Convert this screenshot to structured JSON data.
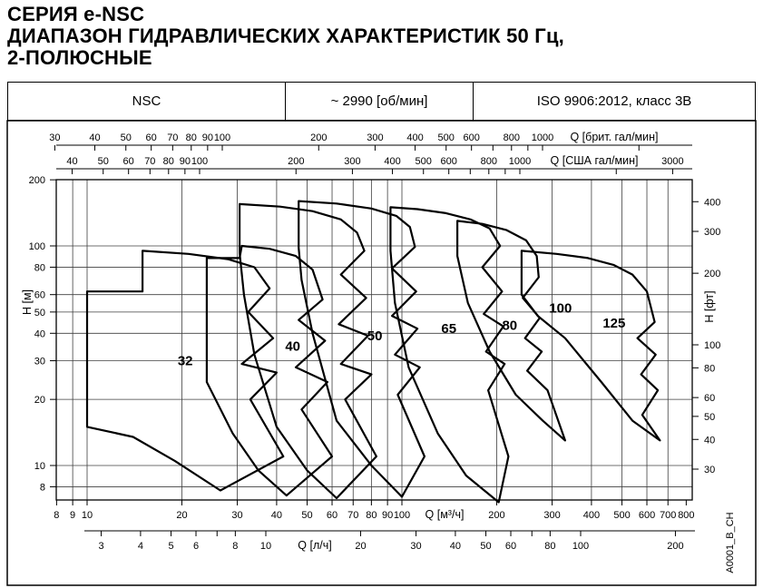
{
  "title_lines": [
    "СЕРИЯ e-NSC",
    "ДИАПАЗОН ГИДРАВЛИЧЕСКИХ ХАРАКТЕРИСТИК 50 Гц,",
    "2-ПОЛЮСНЫЕ"
  ],
  "spec_table": {
    "series": "NSC",
    "speed": "~ 2990 [об/мин]",
    "standard": "ISO 9906:2012, класс 3В"
  },
  "watermark": "A0001_B_CH",
  "chart_data": {
    "type": "area",
    "description": "Огибающие Q-H диапазонов типоразмеров насосов, логарифмические оси",
    "axes": {
      "top_imp_gpm": {
        "title": "Q [брит. гал/мин]",
        "labeled_ticks": [
          30,
          40,
          50,
          60,
          70,
          80,
          90,
          100,
          200,
          300,
          400,
          500,
          600,
          800,
          1000
        ],
        "minor_ticks": [
          700,
          900,
          2000
        ]
      },
      "top_us_gpm": {
        "title": "Q [США гал/мин]",
        "labeled_ticks": [
          40,
          50,
          60,
          70,
          80,
          90,
          100,
          200,
          300,
          400,
          500,
          600,
          800,
          1000,
          3000
        ],
        "minor_ticks": [
          700,
          900,
          2000
        ]
      },
      "bottom_m3h": {
        "title": "Q [м³/ч]",
        "labeled_ticks": [
          8,
          9,
          10,
          20,
          30,
          40,
          50,
          60,
          70,
          80,
          90,
          100,
          200,
          300,
          400,
          500,
          600,
          700,
          800
        ],
        "range": [
          8,
          800
        ]
      },
      "bottom_ls": {
        "title": "Q [л/ч]",
        "labeled_ticks": [
          3,
          4,
          5,
          6,
          8,
          10,
          20,
          30,
          40,
          50,
          60,
          80,
          100,
          200
        ],
        "minor_ticks": [
          7,
          70
        ]
      },
      "left_m": {
        "title": "Н [м]",
        "labeled_ticks": [
          200,
          100,
          80,
          60,
          50,
          40,
          30,
          20,
          10,
          8
        ],
        "range": [
          6.6,
          200
        ]
      },
      "right_ft": {
        "title": "Н [фт]",
        "labeled_ticks": [
          400,
          300,
          200,
          100,
          80,
          60,
          50,
          40,
          30
        ]
      }
    },
    "grid": {
      "x_m3h": [
        9,
        10,
        20,
        30,
        40,
        50,
        60,
        70,
        80,
        90,
        100,
        200,
        300,
        400,
        500,
        600,
        700
      ],
      "y_m": [
        100,
        80,
        60,
        50,
        40,
        30,
        20,
        10,
        8
      ]
    },
    "envelopes": [
      {
        "label": "32",
        "label_pos": [
          20.5,
          30
        ],
        "points": [
          [
            10,
            62
          ],
          [
            15,
            62
          ],
          [
            15,
            95
          ],
          [
            21,
            92
          ],
          [
            28,
            87
          ],
          [
            34,
            80
          ],
          [
            38,
            64
          ],
          [
            32.5,
            50
          ],
          [
            39,
            38
          ],
          [
            31,
            29
          ],
          [
            40,
            26.5
          ],
          [
            33,
            20
          ],
          [
            42,
            11
          ],
          [
            26.5,
            7.7
          ],
          [
            19,
            10.5
          ],
          [
            14,
            13.5
          ],
          [
            10,
            15
          ]
        ]
      },
      {
        "label": "40",
        "label_pos": [
          45,
          35
        ],
        "points": [
          [
            24,
            24
          ],
          [
            24,
            88
          ],
          [
            30.5,
            88
          ],
          [
            31,
            100
          ],
          [
            38,
            97
          ],
          [
            46,
            90
          ],
          [
            52,
            78
          ],
          [
            56,
            57
          ],
          [
            47,
            46
          ],
          [
            57,
            37
          ],
          [
            46,
            28
          ],
          [
            58,
            24
          ],
          [
            48,
            18
          ],
          [
            60,
            11
          ],
          [
            43,
            7.3
          ],
          [
            35,
            9.5
          ],
          [
            29,
            14
          ]
        ]
      },
      {
        "label": "50",
        "label_pos": [
          82,
          39
        ],
        "points": [
          [
            30.5,
            93
          ],
          [
            30.5,
            155
          ],
          [
            41,
            151
          ],
          [
            52,
            144
          ],
          [
            64,
            132
          ],
          [
            72,
            115
          ],
          [
            76,
            95
          ],
          [
            64,
            74
          ],
          [
            77,
            58
          ],
          [
            63,
            44
          ],
          [
            78,
            39
          ],
          [
            64,
            29
          ],
          [
            80,
            26
          ],
          [
            66,
            20
          ],
          [
            83,
            11
          ],
          [
            62,
            7.1
          ],
          [
            50,
            9.5
          ],
          [
            40,
            15
          ],
          [
            34,
            32
          ],
          [
            31.5,
            60
          ]
        ]
      },
      {
        "label": "65",
        "label_pos": [
          141,
          42
        ],
        "points": [
          [
            47,
            98
          ],
          [
            47,
            160
          ],
          [
            62,
            156
          ],
          [
            80,
            148
          ],
          [
            96,
            137
          ],
          [
            106,
            122
          ],
          [
            110,
            99
          ],
          [
            93,
            79
          ],
          [
            111,
            62
          ],
          [
            93,
            48
          ],
          [
            112,
            42
          ],
          [
            95,
            32
          ],
          [
            114,
            28
          ],
          [
            97,
            21
          ],
          [
            118,
            11
          ],
          [
            100,
            7.2
          ],
          [
            80,
            10
          ],
          [
            62,
            16
          ],
          [
            52,
            40
          ],
          [
            48,
            70
          ]
        ]
      },
      {
        "label": "80",
        "label_pos": [
          220,
          43.5
        ],
        "points": [
          [
            92,
            95
          ],
          [
            92,
            150
          ],
          [
            112,
            147
          ],
          [
            138,
            141
          ],
          [
            165,
            132
          ],
          [
            190,
            120
          ],
          [
            205,
            100
          ],
          [
            180,
            80
          ],
          [
            208,
            62
          ],
          [
            182,
            49
          ],
          [
            210,
            43
          ],
          [
            185,
            33
          ],
          [
            212,
            29
          ],
          [
            188,
            22
          ],
          [
            218,
            11
          ],
          [
            203,
            6.8
          ],
          [
            160,
            9
          ],
          [
            130,
            14
          ],
          [
            105,
            28
          ],
          [
            95,
            55
          ]
        ]
      },
      {
        "label": "100",
        "label_pos": [
          319,
          52
        ],
        "points": [
          [
            150,
            90
          ],
          [
            150,
            130
          ],
          [
            180,
            126
          ],
          [
            215,
            118
          ],
          [
            248,
            106
          ],
          [
            268,
            90
          ],
          [
            272,
            72
          ],
          [
            242,
            58
          ],
          [
            274,
            47
          ],
          [
            246,
            38
          ],
          [
            278,
            33
          ],
          [
            250,
            27
          ],
          [
            290,
            22
          ],
          [
            330,
            13
          ],
          [
            280,
            16
          ],
          [
            230,
            21
          ],
          [
            190,
            33
          ],
          [
            162,
            55
          ]
        ]
      },
      {
        "label": "125",
        "label_pos": [
          472,
          44.5
        ],
        "points": [
          [
            240,
            60
          ],
          [
            240,
            95
          ],
          [
            310,
            92
          ],
          [
            390,
            88
          ],
          [
            470,
            82
          ],
          [
            540,
            74
          ],
          [
            600,
            62
          ],
          [
            635,
            45
          ],
          [
            560,
            38
          ],
          [
            640,
            32
          ],
          [
            575,
            26
          ],
          [
            650,
            22
          ],
          [
            580,
            17
          ],
          [
            660,
            13
          ],
          [
            540,
            16
          ],
          [
            430,
            24
          ],
          [
            330,
            38
          ],
          [
            270,
            48
          ]
        ]
      }
    ]
  }
}
